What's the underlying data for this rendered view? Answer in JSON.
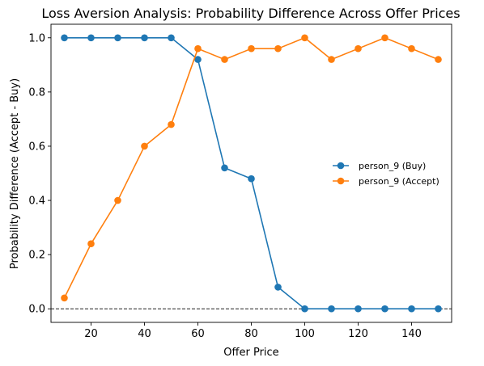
{
  "chart_data": {
    "type": "line",
    "title": "Loss Aversion Analysis: Probability Difference Across Offer Prices",
    "xlabel": "Offer Price",
    "ylabel": "Probability Difference (Accept - Buy)",
    "xlim": [
      5,
      155
    ],
    "ylim": [
      -0.05,
      1.05
    ],
    "xticks": [
      20,
      40,
      60,
      80,
      100,
      120,
      140
    ],
    "yticks": [
      0.0,
      0.2,
      0.4,
      0.6,
      0.8,
      1.0
    ],
    "xtick_labels": [
      "20",
      "40",
      "60",
      "80",
      "100",
      "120",
      "140"
    ],
    "ytick_labels": [
      "0.0",
      "0.2",
      "0.4",
      "0.6",
      "0.8",
      "1.0"
    ],
    "x": [
      10,
      20,
      30,
      40,
      50,
      60,
      70,
      80,
      90,
      100,
      110,
      120,
      130,
      140,
      150
    ],
    "series": [
      {
        "name": "person_9 (Buy)",
        "color": "#1f77b4",
        "values": [
          1.0,
          1.0,
          1.0,
          1.0,
          1.0,
          0.92,
          0.52,
          0.48,
          0.08,
          0.0,
          0.0,
          0.0,
          0.0,
          0.0,
          0.0
        ]
      },
      {
        "name": "person_9 (Accept)",
        "color": "#ff7f0e",
        "values": [
          0.04,
          0.24,
          0.4,
          0.6,
          0.68,
          0.96,
          0.92,
          0.96,
          0.96,
          1.0,
          0.92,
          0.96,
          1.0,
          0.96,
          0.92
        ]
      }
    ],
    "reference_line": {
      "y": 0.0,
      "style": "dashed",
      "color": "#000000"
    },
    "grid": false,
    "legend_position": "center-right"
  }
}
